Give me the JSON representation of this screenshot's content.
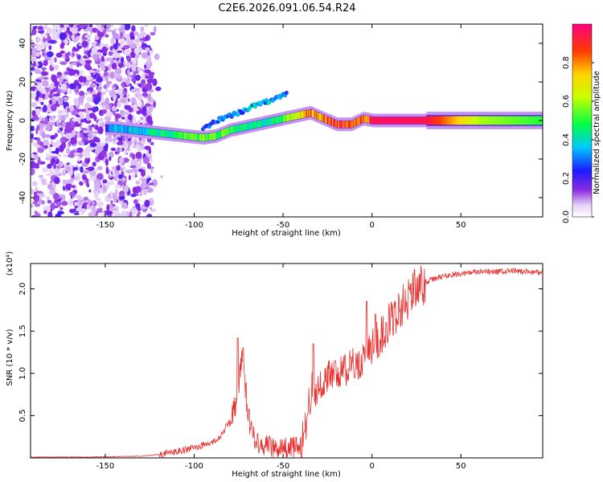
{
  "title": "C2E6.2026.091.06.54.R24",
  "chart_data": [
    {
      "type": "heatmap",
      "name": "spectrogram",
      "xlabel": "Height of straight line (km)",
      "ylabel": "Frequency (Hz)",
      "xlim": [
        -192,
        96
      ],
      "ylim": [
        -50,
        50
      ],
      "xticks": [
        -150,
        -100,
        -50,
        0,
        50
      ],
      "yticks": [
        -40,
        -20,
        0,
        20,
        40
      ],
      "colorbar": {
        "label": "Normalized spectral amplitude",
        "range": [
          0,
          1
        ],
        "ticks": [
          0.0,
          0.2,
          0.4,
          0.6,
          0.8
        ],
        "tick_labels": [
          "0.0",
          "0.2",
          "0.4",
          "0.6",
          "0.8"
        ]
      },
      "noise_region_x": [
        -192,
        -124
      ],
      "ridge": {
        "x": [
          -145,
          -135,
          -125,
          -115,
          -105,
          -95,
          -88,
          -80,
          -70,
          -60,
          -50,
          -40,
          -35,
          -30,
          -25,
          -20,
          -12,
          -5,
          0,
          10,
          30,
          60,
          96
        ],
        "freq": [
          -4,
          -5,
          -6,
          -7,
          -8,
          -9,
          -8,
          -5,
          -3,
          -1,
          1,
          3,
          4,
          2,
          0,
          -2,
          -2,
          1,
          0,
          0,
          0,
          0,
          0
        ],
        "amplitude": [
          0.35,
          0.4,
          0.45,
          0.5,
          0.55,
          0.6,
          0.6,
          0.5,
          0.45,
          0.45,
          0.6,
          0.75,
          0.85,
          0.9,
          0.95,
          0.95,
          0.95,
          0.95,
          0.95,
          0.97,
          0.95,
          0.6,
          0.5
        ]
      },
      "secondary_branch": {
        "x": [
          -95,
          -85,
          -75,
          -65,
          -55,
          -48
        ],
        "freq": [
          -4,
          1,
          4,
          8,
          11,
          14
        ],
        "amplitude": [
          0.3,
          0.35,
          0.35,
          0.4,
          0.45,
          0.4
        ]
      }
    },
    {
      "type": "line",
      "name": "snr",
      "xlabel": "Height of straight line (km)",
      "ylabel": "SNR (10 * v/v)",
      "scale_note": "(x10⁴)",
      "xlim": [
        -192,
        96
      ],
      "ylim": [
        0,
        2.3
      ],
      "xticks": [
        -150,
        -100,
        -50,
        0,
        50
      ],
      "yticks": [
        0.5,
        1.0,
        1.5,
        2.0
      ],
      "ytick_labels": [
        "0.5",
        "1.0",
        "1.5",
        "2.0"
      ],
      "color": "#e8312f",
      "x": [
        -192,
        -160,
        -130,
        -120,
        -110,
        -100,
        -90,
        -85,
        -80,
        -77,
        -75,
        -73,
        -72,
        -70,
        -68,
        -65,
        -60,
        -55,
        -50,
        -45,
        -40,
        -38,
        -36,
        -34,
        -32,
        -30,
        -25,
        -20,
        -15,
        -10,
        -5,
        0,
        5,
        10,
        15,
        20,
        25,
        30,
        40,
        50,
        60,
        70,
        80,
        90,
        96
      ],
      "y": [
        0.01,
        0.01,
        0.02,
        0.04,
        0.07,
        0.12,
        0.18,
        0.25,
        0.45,
        0.6,
        0.8,
        1.2,
        1.0,
        0.55,
        0.35,
        0.2,
        0.15,
        0.12,
        0.11,
        0.12,
        0.15,
        0.3,
        0.55,
        0.8,
        0.75,
        0.85,
        0.95,
        1.0,
        1.05,
        1.1,
        1.15,
        1.3,
        1.45,
        1.6,
        1.75,
        1.9,
        2.0,
        2.08,
        2.15,
        2.18,
        2.2,
        2.2,
        2.21,
        2.2,
        2.2
      ],
      "spikes": [
        {
          "x": -75.5,
          "y": 1.42
        },
        {
          "x": -72.5,
          "y": 1.3
        },
        {
          "x": -33,
          "y": 1.35
        },
        {
          "x": -21,
          "y": 1.15
        },
        {
          "x": -3,
          "y": 1.85
        },
        {
          "x": 2,
          "y": 1.7
        },
        {
          "x": 8,
          "y": 1.6
        }
      ]
    }
  ]
}
